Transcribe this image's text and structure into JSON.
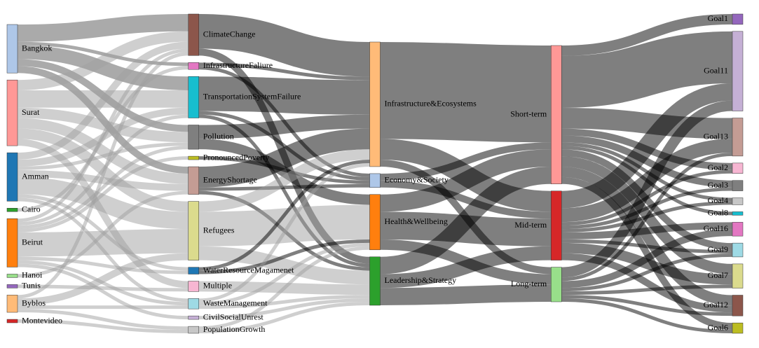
{
  "chart_data": {
    "type": "sankey",
    "nodes": [
      {
        "name": "Bangkok",
        "color": "#aec7e8"
      },
      {
        "name": "Surat",
        "color": "#ff9896"
      },
      {
        "name": "Amman",
        "color": "#1f77b4"
      },
      {
        "name": "Cairo",
        "color": "#2ca02c"
      },
      {
        "name": "Beirut",
        "color": "#ff7f0e"
      },
      {
        "name": "Hanoi",
        "color": "#98df8a"
      },
      {
        "name": "Tunis",
        "color": "#9467bd"
      },
      {
        "name": "Byblos",
        "color": "#ffbb78"
      },
      {
        "name": "Montevideo",
        "color": "#d62728"
      },
      {
        "name": "ClimateChange",
        "color": "#8c564b"
      },
      {
        "name": "InfrastructureFaliure",
        "color": "#e377c2"
      },
      {
        "name": "TransportationSystemFailure",
        "color": "#17becf"
      },
      {
        "name": "Pollution",
        "color": "#7f7f7f"
      },
      {
        "name": "PronouncedPoverty",
        "color": "#bcbd22"
      },
      {
        "name": "EnergyShortage",
        "color": "#c49c94"
      },
      {
        "name": "Refugees",
        "color": "#dbdb8d"
      },
      {
        "name": "WaterResourceMagamenet",
        "color": "#1f77b4"
      },
      {
        "name": "Multiple",
        "color": "#f7b6d2"
      },
      {
        "name": "WasteManagement",
        "color": "#9edae5"
      },
      {
        "name": "CivilSocialUnrest",
        "color": "#c5b0d5"
      },
      {
        "name": "PopulationGrowth",
        "color": "#c7c7c7"
      },
      {
        "name": "Infrastructure&Ecosystems",
        "color": "#ffbb78"
      },
      {
        "name": "Economy&Society",
        "color": "#aec7e8"
      },
      {
        "name": "Health&Wellbeing",
        "color": "#ff7f0e"
      },
      {
        "name": "Leadership&Strategy",
        "color": "#2ca02c"
      },
      {
        "name": "Short-term",
        "color": "#ff9896"
      },
      {
        "name": "Mid-term",
        "color": "#d62728"
      },
      {
        "name": "Long-term",
        "color": "#98df8a"
      },
      {
        "name": "Goal1",
        "color": "#9467bd"
      },
      {
        "name": "Goal11",
        "color": "#c5b0d5"
      },
      {
        "name": "Goal13",
        "color": "#c49c94"
      },
      {
        "name": "Goal2",
        "color": "#f7b6d2"
      },
      {
        "name": "Goal3",
        "color": "#7f7f7f"
      },
      {
        "name": "Goal4",
        "color": "#c7c7c7"
      },
      {
        "name": "Goal8",
        "color": "#17becf"
      },
      {
        "name": "Goal16",
        "color": "#e377c2"
      },
      {
        "name": "Goal9",
        "color": "#9edae5"
      },
      {
        "name": "Goal7",
        "color": "#dbdb8d"
      },
      {
        "name": "Goal12",
        "color": "#8c564b"
      },
      {
        "name": "Goal6",
        "color": "#bcbd22"
      }
    ],
    "links": [
      {
        "source": 0,
        "target": 9,
        "value": 5,
        "color": "#555555"
      },
      {
        "source": 0,
        "target": 10,
        "value": 1,
        "color": "#555555"
      },
      {
        "source": 0,
        "target": 11,
        "value": 4,
        "color": "#555555"
      },
      {
        "source": 0,
        "target": 12,
        "value": 2,
        "color": "#555555"
      },
      {
        "source": 0,
        "target": 14,
        "value": 2,
        "color": "#555555"
      },
      {
        "source": 1,
        "target": 9,
        "value": 3,
        "color": "#a0a0a0"
      },
      {
        "source": 1,
        "target": 11,
        "value": 5,
        "color": "#a0a0a0"
      },
      {
        "source": 1,
        "target": 12,
        "value": 3,
        "color": "#a0a0a0"
      },
      {
        "source": 1,
        "target": 14,
        "value": 3,
        "color": "#a0a0a0"
      },
      {
        "source": 1,
        "target": 15,
        "value": 3,
        "color": "#a0a0a0"
      },
      {
        "source": 1,
        "target": 17,
        "value": 2,
        "color": "#a0a0a0"
      },
      {
        "source": 2,
        "target": 9,
        "value": 2,
        "color": "#a0a0a0"
      },
      {
        "source": 2,
        "target": 11,
        "value": 2,
        "color": "#a0a0a0"
      },
      {
        "source": 2,
        "target": 12,
        "value": 1,
        "color": "#a0a0a0"
      },
      {
        "source": 2,
        "target": 14,
        "value": 2,
        "color": "#a0a0a0"
      },
      {
        "source": 2,
        "target": 15,
        "value": 5,
        "color": "#a0a0a0"
      },
      {
        "source": 2,
        "target": 16,
        "value": 1,
        "color": "#a0a0a0"
      },
      {
        "source": 2,
        "target": 18,
        "value": 1,
        "color": "#a0a0a0"
      },
      {
        "source": 3,
        "target": 10,
        "value": 1,
        "color": "#a0a0a0"
      },
      {
        "source": 4,
        "target": 9,
        "value": 1,
        "color": "#a0a0a0"
      },
      {
        "source": 4,
        "target": 11,
        "value": 1,
        "color": "#a0a0a0"
      },
      {
        "source": 4,
        "target": 12,
        "value": 1,
        "color": "#a0a0a0"
      },
      {
        "source": 4,
        "target": 13,
        "value": 1,
        "color": "#a0a0a0"
      },
      {
        "source": 4,
        "target": 15,
        "value": 7,
        "color": "#a0a0a0"
      },
      {
        "source": 4,
        "target": 16,
        "value": 1,
        "color": "#a0a0a0"
      },
      {
        "source": 4,
        "target": 19,
        "value": 1,
        "color": "#a0a0a0"
      },
      {
        "source": 4,
        "target": 18,
        "value": 1,
        "color": "#a0a0a0"
      },
      {
        "source": 5,
        "target": 14,
        "value": 1,
        "color": "#a0a0a0"
      },
      {
        "source": 6,
        "target": 17,
        "value": 1,
        "color": "#a0a0a0"
      },
      {
        "source": 7,
        "target": 9,
        "value": 1,
        "color": "#a0a0a0"
      },
      {
        "source": 7,
        "target": 15,
        "value": 2,
        "color": "#a0a0a0"
      },
      {
        "source": 7,
        "target": 18,
        "value": 1,
        "color": "#a0a0a0"
      },
      {
        "source": 7,
        "target": 20,
        "value": 1,
        "color": "#a0a0a0"
      },
      {
        "source": 8,
        "target": 20,
        "value": 1,
        "color": "#a0a0a0"
      },
      {
        "source": 9,
        "target": 21,
        "value": 10,
        "color": "#000000"
      },
      {
        "source": 9,
        "target": 24,
        "value": 2,
        "color": "#000000"
      },
      {
        "source": 10,
        "target": 21,
        "value": 1,
        "color": "#000000"
      },
      {
        "source": 10,
        "target": 22,
        "value": 1,
        "color": "#000000"
      },
      {
        "source": 11,
        "target": 21,
        "value": 10,
        "color": "#000000"
      },
      {
        "source": 11,
        "target": 22,
        "value": 1,
        "color": "#000000"
      },
      {
        "source": 11,
        "target": 24,
        "value": 1,
        "color": "#000000"
      },
      {
        "source": 12,
        "target": 21,
        "value": 4,
        "color": "#000000"
      },
      {
        "source": 12,
        "target": 23,
        "value": 3,
        "color": "#000000"
      },
      {
        "source": 13,
        "target": 22,
        "value": 1,
        "color": "#000000"
      },
      {
        "source": 14,
        "target": 21,
        "value": 6,
        "color": "#000000"
      },
      {
        "source": 14,
        "target": 22,
        "value": 1,
        "color": "#000000"
      },
      {
        "source": 14,
        "target": 24,
        "value": 1,
        "color": "#000000"
      },
      {
        "source": 15,
        "target": 21,
        "value": 3,
        "color": "#a0a0a0"
      },
      {
        "source": 15,
        "target": 23,
        "value": 10,
        "color": "#a0a0a0"
      },
      {
        "source": 15,
        "target": 24,
        "value": 4,
        "color": "#a0a0a0"
      },
      {
        "source": 16,
        "target": 21,
        "value": 1,
        "color": "#000000"
      },
      {
        "source": 16,
        "target": 23,
        "value": 1,
        "color": "#000000"
      },
      {
        "source": 17,
        "target": 24,
        "value": 3,
        "color": "#a0a0a0"
      },
      {
        "source": 18,
        "target": 21,
        "value": 1,
        "color": "#a0a0a0"
      },
      {
        "source": 18,
        "target": 23,
        "value": 1,
        "color": "#a0a0a0"
      },
      {
        "source": 18,
        "target": 24,
        "value": 1,
        "color": "#a0a0a0"
      },
      {
        "source": 19,
        "target": 24,
        "value": 1,
        "color": "#a0a0a0"
      },
      {
        "source": 20,
        "target": 23,
        "value": 1,
        "color": "#a0a0a0"
      },
      {
        "source": 20,
        "target": 24,
        "value": 1,
        "color": "#a0a0a0"
      },
      {
        "source": 21,
        "target": 25,
        "value": 28,
        "color": "#000000"
      },
      {
        "source": 21,
        "target": 26,
        "value": 6,
        "color": "#000000"
      },
      {
        "source": 21,
        "target": 27,
        "value": 2,
        "color": "#000000"
      },
      {
        "source": 22,
        "target": 25,
        "value": 2,
        "color": "#000000"
      },
      {
        "source": 22,
        "target": 26,
        "value": 2,
        "color": "#000000"
      },
      {
        "source": 23,
        "target": 25,
        "value": 5,
        "color": "#000000"
      },
      {
        "source": 23,
        "target": 26,
        "value": 8,
        "color": "#000000"
      },
      {
        "source": 23,
        "target": 27,
        "value": 3,
        "color": "#000000"
      },
      {
        "source": 24,
        "target": 25,
        "value": 5,
        "color": "#000000"
      },
      {
        "source": 24,
        "target": 26,
        "value": 4,
        "color": "#000000"
      },
      {
        "source": 24,
        "target": 27,
        "value": 5,
        "color": "#000000"
      },
      {
        "source": 25,
        "target": 28,
        "value": 3,
        "color": "#000000"
      },
      {
        "source": 25,
        "target": 29,
        "value": 15,
        "color": "#000000"
      },
      {
        "source": 25,
        "target": 30,
        "value": 6,
        "color": "#000000"
      },
      {
        "source": 25,
        "target": 31,
        "value": 2,
        "color": "#000000"
      },
      {
        "source": 25,
        "target": 32,
        "value": 2,
        "color": "#000000"
      },
      {
        "source": 25,
        "target": 33,
        "value": 1,
        "color": "#000000"
      },
      {
        "source": 25,
        "target": 34,
        "value": 1,
        "color": "#000000"
      },
      {
        "source": 25,
        "target": 36,
        "value": 2,
        "color": "#000000"
      },
      {
        "source": 25,
        "target": 37,
        "value": 3,
        "color": "#000000"
      },
      {
        "source": 25,
        "target": 38,
        "value": 3,
        "color": "#000000"
      },
      {
        "source": 25,
        "target": 39,
        "value": 2,
        "color": "#000000"
      },
      {
        "source": 26,
        "target": 29,
        "value": 5,
        "color": "#000000"
      },
      {
        "source": 26,
        "target": 30,
        "value": 4,
        "color": "#000000"
      },
      {
        "source": 26,
        "target": 31,
        "value": 1,
        "color": "#000000"
      },
      {
        "source": 26,
        "target": 32,
        "value": 1,
        "color": "#000000"
      },
      {
        "source": 26,
        "target": 33,
        "value": 1,
        "color": "#000000"
      },
      {
        "source": 26,
        "target": 35,
        "value": 2,
        "color": "#000000"
      },
      {
        "source": 26,
        "target": 36,
        "value": 1,
        "color": "#000000"
      },
      {
        "source": 26,
        "target": 37,
        "value": 3,
        "color": "#000000"
      },
      {
        "source": 26,
        "target": 38,
        "value": 2,
        "color": "#000000"
      },
      {
        "source": 27,
        "target": 29,
        "value": 3,
        "color": "#000000"
      },
      {
        "source": 27,
        "target": 30,
        "value": 1,
        "color": "#000000"
      },
      {
        "source": 27,
        "target": 35,
        "value": 2,
        "color": "#000000"
      },
      {
        "source": 27,
        "target": 36,
        "value": 1,
        "color": "#000000"
      },
      {
        "source": 27,
        "target": 37,
        "value": 1,
        "color": "#000000"
      },
      {
        "source": 27,
        "target": 38,
        "value": 1,
        "color": "#000000"
      },
      {
        "source": 27,
        "target": 39,
        "value": 1,
        "color": "#000000"
      }
    ]
  }
}
